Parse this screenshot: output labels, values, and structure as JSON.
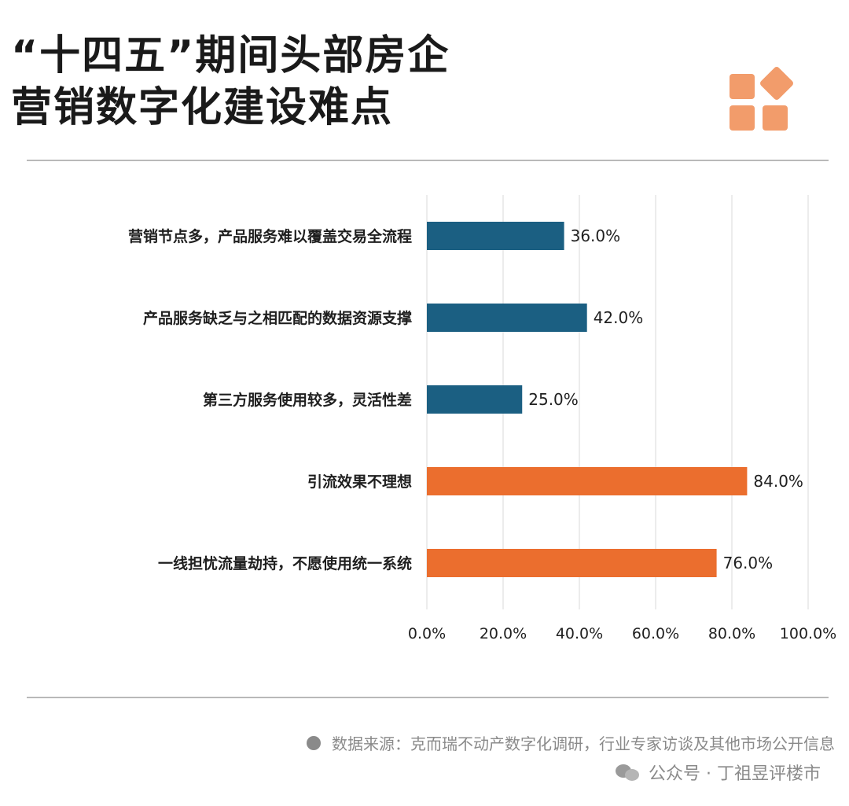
{
  "header": {
    "title_line1": "“十四五”期间头部房企",
    "title_line2": "营销数字化建设难点",
    "logo_icon": "four-squares-icon"
  },
  "colors": {
    "series_a": "#1B5F82",
    "series_b": "#EB6E2E",
    "grid": "#d9d9d9",
    "logo": "#F29C6B"
  },
  "chart_data": {
    "type": "bar",
    "orientation": "horizontal",
    "categories": [
      "营销节点多，产品服务难以覆盖交易全流程",
      "产品服务缺乏与之相匹配的数据资源支撑",
      "第三方服务使用较多，灵活性差",
      "引流效果不理想",
      "一线担忧流量劫持，不愿使用统一系统"
    ],
    "values": [
      36.0,
      42.0,
      25.0,
      84.0,
      76.0
    ],
    "value_labels": [
      "36.0%",
      "42.0%",
      "25.0%",
      "84.0%",
      "76.0%"
    ],
    "bar_colors": [
      "#1B5F82",
      "#1B5F82",
      "#1B5F82",
      "#EB6E2E",
      "#EB6E2E"
    ],
    "x_ticks": [
      0,
      20,
      40,
      60,
      80,
      100
    ],
    "x_tick_labels": [
      "0.0%",
      "20.0%",
      "40.0%",
      "60.0%",
      "80.0%",
      "100.0%"
    ],
    "xlim": [
      0,
      100
    ],
    "grid": "vertical",
    "legend": "none"
  },
  "footer": {
    "source_text": "数据来源：克而瑞不动产数字化调研，行业专家访谈及其他市场公开信息",
    "account_text": "公众号 · 丁祖昱评楼市",
    "account_icon": "wechat-icon"
  }
}
